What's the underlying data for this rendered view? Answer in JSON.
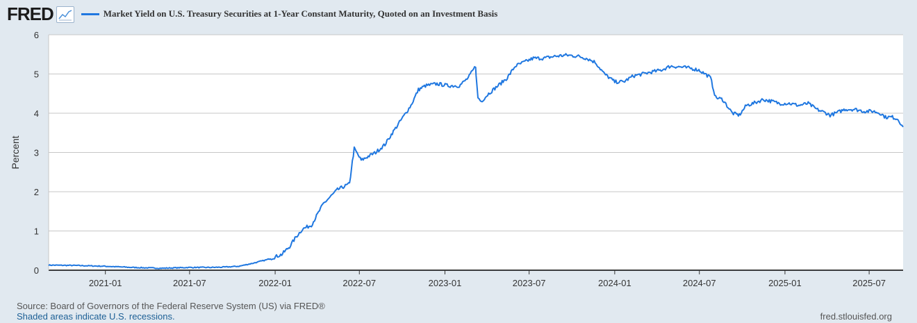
{
  "header": {
    "logo": "FRED",
    "logo_icon": "line-chart-icon",
    "title": "Market Yield on U.S. Treasury Securities at 1-Year Constant Maturity, Quoted on an Investment Basis"
  },
  "footer": {
    "source": "Source: Board of Governors of the Federal Reserve System (US) via FRED®",
    "recessions": "Shaded areas indicate U.S. recessions.",
    "site": "fred.stlouisfed.org"
  },
  "colors": {
    "series": "#1f77e0",
    "background": "#e1e9f0",
    "plot": "#ffffff",
    "grid": "#c7c7c7"
  },
  "chart_data": {
    "type": "line",
    "title": "Market Yield on U.S. Treasury Securities at 1-Year Constant Maturity, Quoted on an Investment Basis",
    "xlabel": "",
    "ylabel": "Percent",
    "ylim": [
      0,
      6
    ],
    "yticks": [
      0,
      1,
      2,
      3,
      4,
      5,
      6
    ],
    "xlim": [
      "2020-09-01",
      "2025-09-12"
    ],
    "xticks": [
      "2021-01",
      "2021-07",
      "2022-01",
      "2022-07",
      "2023-01",
      "2023-07",
      "2024-01",
      "2024-07",
      "2025-01",
      "2025-07"
    ],
    "grid": true,
    "legend": "top-left",
    "series": [
      {
        "name": "Market Yield on U.S. Treasury Securities at 1-Year Constant Maturity, Quoted on an Investment Basis",
        "x": [
          "2020-09-01",
          "2020-11-01",
          "2021-01-01",
          "2021-03-01",
          "2021-05-01",
          "2021-07-01",
          "2021-08-15",
          "2021-09-15",
          "2021-10-15",
          "2021-11-15",
          "2021-12-15",
          "2022-01-15",
          "2022-02-01",
          "2022-02-15",
          "2022-03-01",
          "2022-03-20",
          "2022-04-15",
          "2022-05-15",
          "2022-06-01",
          "2022-06-10",
          "2022-06-14",
          "2022-06-20",
          "2022-07-05",
          "2022-07-20",
          "2022-08-05",
          "2022-08-25",
          "2022-09-10",
          "2022-09-30",
          "2022-10-20",
          "2022-11-05",
          "2022-11-20",
          "2022-12-15",
          "2023-01-10",
          "2023-02-01",
          "2023-02-20",
          "2023-03-08",
          "2023-03-10",
          "2023-03-13",
          "2023-03-20",
          "2023-04-05",
          "2023-04-25",
          "2023-05-15",
          "2023-06-01",
          "2023-06-20",
          "2023-07-10",
          "2023-08-01",
          "2023-08-25",
          "2023-09-20",
          "2023-10-15",
          "2023-11-01",
          "2023-11-20",
          "2023-12-10",
          "2024-01-01",
          "2024-01-20",
          "2024-02-10",
          "2024-03-01",
          "2024-03-20",
          "2024-04-10",
          "2024-04-30",
          "2024-05-20",
          "2024-06-10",
          "2024-06-30",
          "2024-07-20",
          "2024-07-25",
          "2024-08-05",
          "2024-08-20",
          "2024-09-10",
          "2024-09-25",
          "2024-10-10",
          "2024-10-25",
          "2024-11-15",
          "2024-12-05",
          "2024-12-20",
          "2025-01-10",
          "2025-01-31",
          "2025-02-20",
          "2025-03-10",
          "2025-03-31",
          "2025-04-08",
          "2025-04-20",
          "2025-05-10",
          "2025-05-30",
          "2025-06-20",
          "2025-07-10",
          "2025-07-25",
          "2025-08-05",
          "2025-08-20",
          "2025-09-01",
          "2025-09-12"
        ],
        "values": [
          0.13,
          0.12,
          0.1,
          0.07,
          0.05,
          0.07,
          0.07,
          0.08,
          0.1,
          0.18,
          0.27,
          0.4,
          0.6,
          0.85,
          1.05,
          1.15,
          1.7,
          2.05,
          2.15,
          2.2,
          2.6,
          3.1,
          2.8,
          2.9,
          3.0,
          3.2,
          3.5,
          3.85,
          4.2,
          4.6,
          4.7,
          4.75,
          4.7,
          4.7,
          4.9,
          5.2,
          4.8,
          4.4,
          4.3,
          4.5,
          4.7,
          4.9,
          5.2,
          5.3,
          5.4,
          5.4,
          5.45,
          5.48,
          5.45,
          5.4,
          5.3,
          5.0,
          4.8,
          4.8,
          4.95,
          5.0,
          5.05,
          5.1,
          5.2,
          5.18,
          5.15,
          5.1,
          4.95,
          4.9,
          4.4,
          4.35,
          4.0,
          3.95,
          4.2,
          4.25,
          4.35,
          4.3,
          4.25,
          4.25,
          4.2,
          4.25,
          4.1,
          4.0,
          3.95,
          4.0,
          4.1,
          4.1,
          4.05,
          4.05,
          4.0,
          3.9,
          3.9,
          3.85,
          3.65
        ]
      }
    ]
  }
}
